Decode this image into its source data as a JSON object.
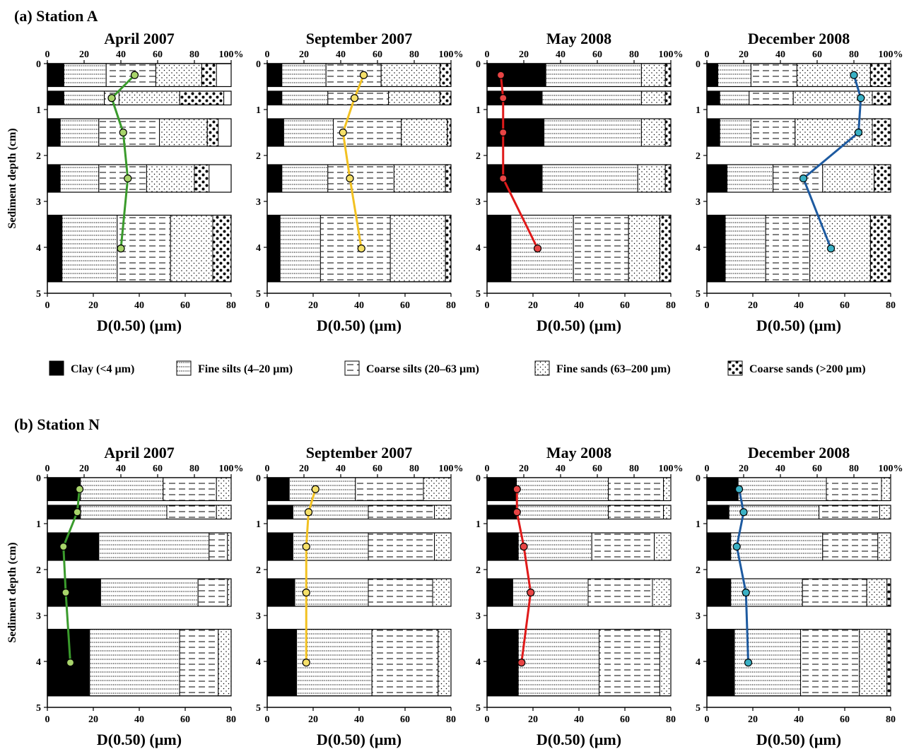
{
  "sections": [
    {
      "title": "(a) Station A",
      "panels": [
        {
          "title": "April 2007",
          "line_color": "#3a9b2c",
          "marker_color": "#a8d46b",
          "chart_data": {
            "type": "stacked-bar-with-line",
            "layers": [
              {
                "top": 0.0,
                "bottom": 0.5,
                "fractions": [
                  9,
                  23,
                  27,
                  25,
                  8
                ],
                "d50": 38
              },
              {
                "top": 0.6,
                "bottom": 0.9,
                "fractions": [
                  9,
                  22,
                  8,
                  33,
                  24
                ],
                "d50": 28
              },
              {
                "top": 1.2,
                "bottom": 1.8,
                "fractions": [
                  7,
                  21,
                  33,
                  26,
                  6
                ],
                "d50": 33
              },
              {
                "top": 2.2,
                "bottom": 2.8,
                "fractions": [
                  7,
                  21,
                  26,
                  26,
                  8
                ],
                "d50": 35
              },
              {
                "top": 3.3,
                "bottom": 4.75,
                "fractions": [
                  8,
                  30,
                  29,
                  23,
                  10
                ],
                "d50": 32
              }
            ]
          }
        },
        {
          "title": "September 2007",
          "line_color": "#f2c121",
          "marker_color": "#f5e06a",
          "chart_data": {
            "type": "stacked-bar-with-line",
            "layers": [
              {
                "top": 0.0,
                "bottom": 0.5,
                "fractions": [
                  8,
                  24,
                  30,
                  32,
                  6
                ],
                "d50": 42
              },
              {
                "top": 0.6,
                "bottom": 0.9,
                "fractions": [
                  8,
                  25,
                  33,
                  28,
                  6
                ],
                "d50": 38
              },
              {
                "top": 1.2,
                "bottom": 1.8,
                "fractions": [
                  9,
                  27,
                  37,
                  25,
                  2
                ],
                "d50": 33
              },
              {
                "top": 2.2,
                "bottom": 2.8,
                "fractions": [
                  8,
                  25,
                  36,
                  28,
                  3
                ],
                "d50": 36
              },
              {
                "top": 3.3,
                "bottom": 4.75,
                "fractions": [
                  7,
                  22,
                  38,
                  30,
                  3
                ],
                "d50": 41
              }
            ]
          }
        },
        {
          "title": "May 2008",
          "line_color": "#e01a1a",
          "marker_color": "#e84545",
          "chart_data": {
            "type": "stacked-bar-with-line",
            "layers": [
              {
                "top": 0.0,
                "bottom": 0.5,
                "fractions": [
                  32,
                  52,
                  0,
                  13,
                  3
                ],
                "d50": 6
              },
              {
                "top": 0.6,
                "bottom": 0.9,
                "fractions": [
                  30,
                  54,
                  0,
                  13,
                  3
                ],
                "d50": 7
              },
              {
                "top": 1.2,
                "bottom": 1.8,
                "fractions": [
                  31,
                  53,
                  0,
                  13,
                  3
                ],
                "d50": 7
              },
              {
                "top": 2.2,
                "bottom": 2.8,
                "fractions": [
                  30,
                  52,
                  0,
                  15,
                  3
                ],
                "d50": 7
              },
              {
                "top": 3.3,
                "bottom": 4.75,
                "fractions": [
                  13,
                  34,
                  30,
                  17,
                  6
                ],
                "d50": 22
              }
            ]
          }
        },
        {
          "title": "December 2008",
          "line_color": "#1d5aa0",
          "marker_color": "#3ab0c4",
          "chart_data": {
            "type": "stacked-bar-with-line",
            "layers": [
              {
                "top": 0.0,
                "bottom": 0.5,
                "fractions": [
                  6,
                  18,
                  25,
                  40,
                  11
                ],
                "d50": 64
              },
              {
                "top": 0.6,
                "bottom": 0.9,
                "fractions": [
                  7,
                  16,
                  24,
                  43,
                  10
                ],
                "d50": 67
              },
              {
                "top": 1.2,
                "bottom": 1.8,
                "fractions": [
                  7,
                  17,
                  24,
                  42,
                  10
                ],
                "d50": 66
              },
              {
                "top": 2.2,
                "bottom": 2.8,
                "fractions": [
                  11,
                  25,
                  27,
                  28,
                  9
                ],
                "d50": 42
              },
              {
                "top": 3.3,
                "bottom": 4.75,
                "fractions": [
                  10,
                  22,
                  24,
                  33,
                  11
                ],
                "d50": 54
              }
            ]
          }
        }
      ]
    },
    {
      "title": "(b) Station N",
      "panels": [
        {
          "title": "April 2007",
          "line_color": "#3a9b2c",
          "marker_color": "#a8d46b",
          "chart_data": {
            "type": "stacked-bar-with-line",
            "layers": [
              {
                "top": 0.0,
                "bottom": 0.5,
                "fractions": [
                  18,
                  45,
                  29,
                  8,
                  0
                ],
                "d50": 14
              },
              {
                "top": 0.6,
                "bottom": 0.9,
                "fractions": [
                  18,
                  47,
                  27,
                  8,
                  0
                ],
                "d50": 13
              },
              {
                "top": 1.2,
                "bottom": 1.8,
                "fractions": [
                  28,
                  60,
                  10,
                  2,
                  0
                ],
                "d50": 7
              },
              {
                "top": 2.2,
                "bottom": 2.8,
                "fractions": [
                  29,
                  53,
                  16,
                  2,
                  0
                ],
                "d50": 8
              },
              {
                "top": 3.3,
                "bottom": 4.75,
                "fractions": [
                  23,
                  49,
                  21,
                  7,
                  0
                ],
                "d50": 10
              }
            ]
          }
        },
        {
          "title": "September 2007",
          "line_color": "#f2c121",
          "marker_color": "#f5e06a",
          "chart_data": {
            "type": "stacked-bar-with-line",
            "layers": [
              {
                "top": 0.0,
                "bottom": 0.5,
                "fractions": [
                  12,
                  36,
                  37,
                  15,
                  0
                ],
                "d50": 21
              },
              {
                "top": 0.6,
                "bottom": 0.9,
                "fractions": [
                  14,
                  41,
                  36,
                  9,
                  0
                ],
                "d50": 18
              },
              {
                "top": 1.2,
                "bottom": 1.8,
                "fractions": [
                  14,
                  41,
                  36,
                  9,
                  0
                ],
                "d50": 17
              },
              {
                "top": 2.2,
                "bottom": 2.8,
                "fractions": [
                  15,
                  40,
                  35,
                  10,
                  0
                ],
                "d50": 17
              },
              {
                "top": 3.3,
                "bottom": 4.75,
                "fractions": [
                  16,
                  41,
                  36,
                  7,
                  0
                ],
                "d50": 17
              }
            ]
          }
        },
        {
          "title": "May 2008",
          "line_color": "#e01a1a",
          "marker_color": "#e84545",
          "chart_data": {
            "type": "stacked-bar-with-line",
            "layers": [
              {
                "top": 0.0,
                "bottom": 0.5,
                "fractions": [
                  16,
                  50,
                  30,
                  4,
                  0
                ],
                "d50": 13
              },
              {
                "top": 0.6,
                "bottom": 0.9,
                "fractions": [
                  16,
                  50,
                  30,
                  4,
                  0
                ],
                "d50": 13
              },
              {
                "top": 1.2,
                "bottom": 1.8,
                "fractions": [
                  17,
                  40,
                  34,
                  9,
                  0
                ],
                "d50": 16
              },
              {
                "top": 2.2,
                "bottom": 2.8,
                "fractions": [
                  14,
                  41,
                  35,
                  10,
                  0
                ],
                "d50": 19
              },
              {
                "top": 3.3,
                "bottom": 4.75,
                "fractions": [
                  17,
                  44,
                  33,
                  6,
                  0
                ],
                "d50": 15
              }
            ]
          }
        },
        {
          "title": "December 2008",
          "line_color": "#1d5aa0",
          "marker_color": "#3ab0c4",
          "chart_data": {
            "type": "stacked-bar-with-line",
            "layers": [
              {
                "top": 0.0,
                "bottom": 0.5,
                "fractions": [
                  17,
                  48,
                  30,
                  5,
                  0
                ],
                "d50": 14
              },
              {
                "top": 0.6,
                "bottom": 0.9,
                "fractions": [
                  12,
                  49,
                  33,
                  6,
                  0
                ],
                "d50": 16
              },
              {
                "top": 1.2,
                "bottom": 1.8,
                "fractions": [
                  13,
                  50,
                  30,
                  7,
                  0
                ],
                "d50": 13
              },
              {
                "top": 2.2,
                "bottom": 2.8,
                "fractions": [
                  13,
                  39,
                  35,
                  11,
                  2
                ],
                "d50": 17
              },
              {
                "top": 3.3,
                "bottom": 4.75,
                "fractions": [
                  15,
                  36,
                  32,
                  15,
                  2
                ],
                "d50": 18
              }
            ]
          }
        }
      ]
    }
  ],
  "axes": {
    "top_ticks": [
      "0",
      "20",
      "40",
      "60",
      "80",
      "100%"
    ],
    "bottom_ticks": [
      "0",
      "20",
      "40",
      "60",
      "80"
    ],
    "depth_ticks": [
      "0",
      "1",
      "2",
      "3",
      "4",
      "5"
    ],
    "xlabel": "D(0.50) (µm)",
    "ylabel": "Sediment depth (cm)",
    "percent_range": [
      0,
      100
    ],
    "d50_range": [
      0,
      80
    ],
    "depth_range": [
      0,
      5
    ]
  },
  "legend": [
    {
      "label": "Clay (<4 µm)",
      "pattern": "clay"
    },
    {
      "label": "Fine silts (4–20 µm)",
      "pattern": "finesilt"
    },
    {
      "label": "Coarse silts (20–63 µm)",
      "pattern": "coarsesilt"
    },
    {
      "label": "Fine sands (63–200 µm)",
      "pattern": "finesand"
    },
    {
      "label": "Coarse sands (>200 µm)",
      "pattern": "coarsesand"
    }
  ]
}
